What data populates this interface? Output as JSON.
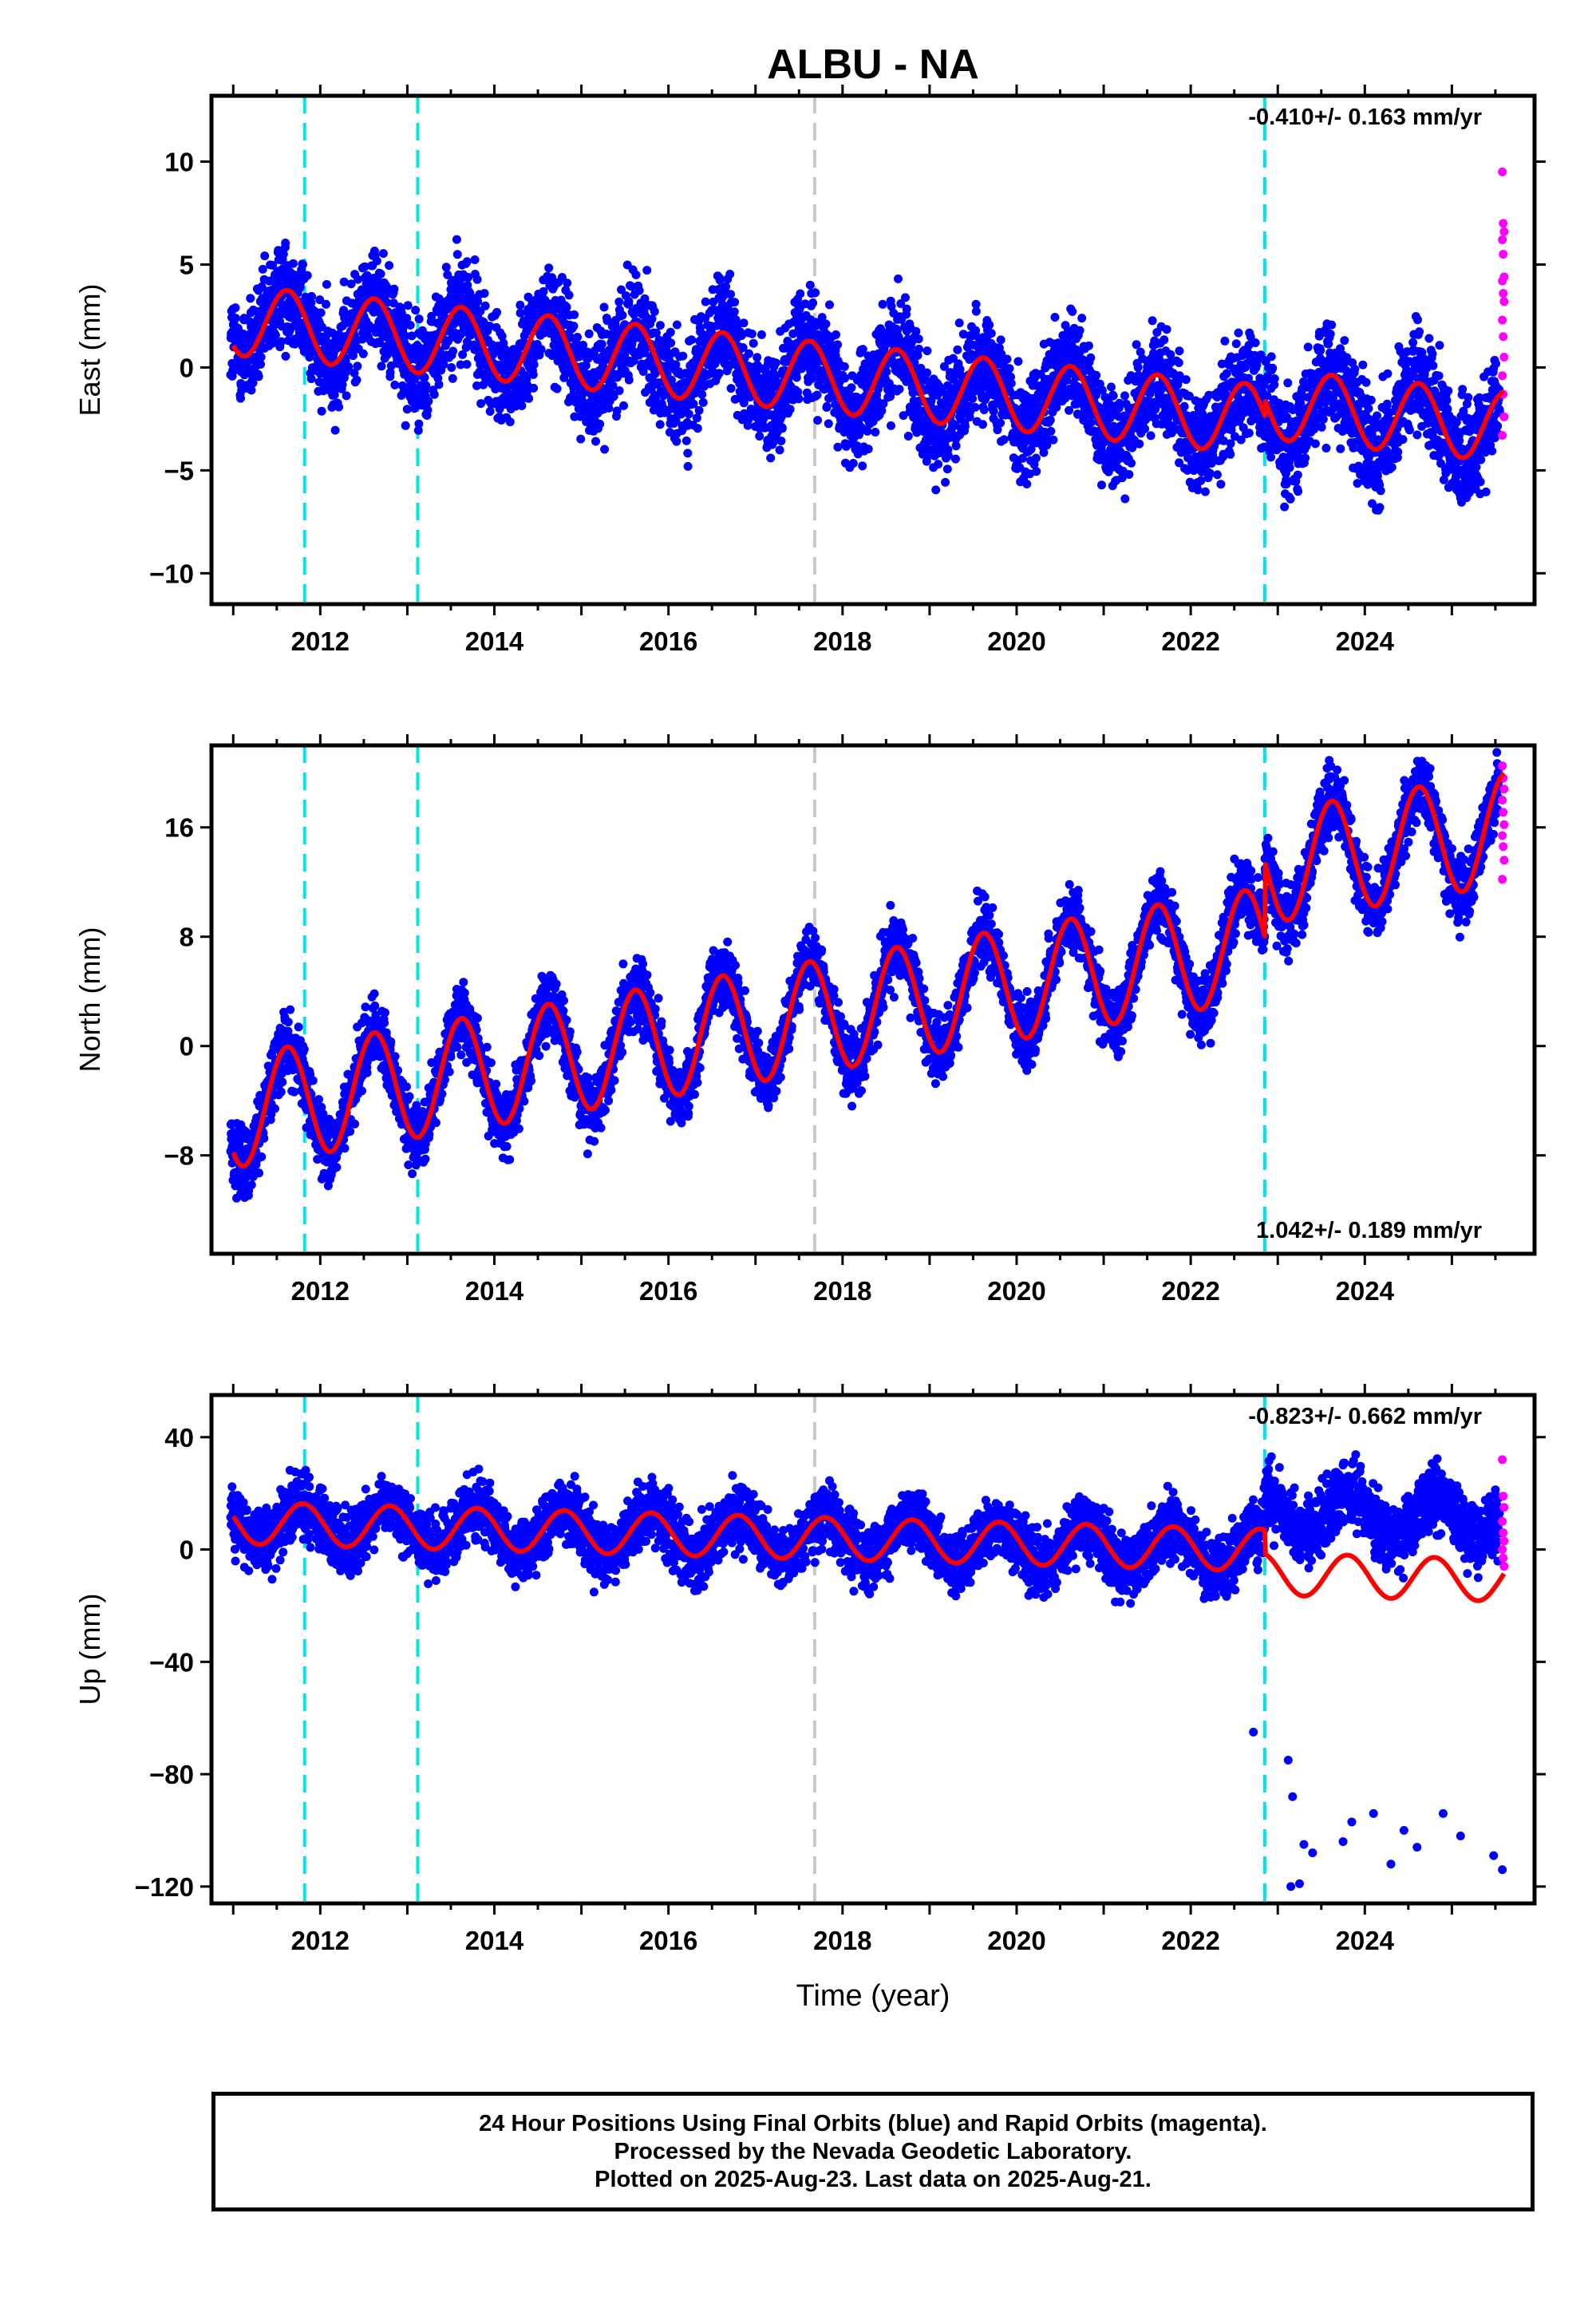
{
  "title": "ALBU - NA",
  "xlabel": "Time (year)",
  "caption": {
    "line1": "24 Hour Positions Using Final Orbits (blue) and Rapid Orbits (magenta).",
    "line2": "Processed by the Nevada Geodetic Laboratory.",
    "line3": "Plotted on 2025-Aug-23. Last data on 2025-Aug-21."
  },
  "colors": {
    "final": "#0000ff",
    "rapid": "#ff00ff",
    "model": "#ff0000",
    "equipment": "#00e5e5",
    "earthquake": "#c8c8c8"
  },
  "chart_data": [
    {
      "type": "scatter",
      "name": "East",
      "ylabel": "East (mm)",
      "xlim": [
        2010.75,
        2025.95
      ],
      "ylim": [
        -11.5,
        13.2
      ],
      "yticks": [
        10,
        5,
        0,
        -5,
        -10
      ],
      "ytick_labels": [
        "10",
        "5",
        "0",
        "−5",
        "−10"
      ],
      "xticks": [
        2012,
        2014,
        2016,
        2018,
        2020,
        2022,
        2024
      ],
      "rate": "-0.410+/- 0.163 mm/yr",
      "rate_position": "top-right",
      "trend": {
        "t0": 2011.0,
        "y0": 2.3,
        "rate": -0.41,
        "annual_amp": 1.7,
        "phase_peak": 0.62,
        "step": {
          "at": 2022.85,
          "size": 0.8
        }
      },
      "scatter_sd": 1.25,
      "rapid_values": [
        9.5,
        7.0,
        6.6,
        6.2,
        5.5,
        4.4,
        4.2,
        3.6,
        3.2,
        2.3,
        1.5,
        0.5,
        -0.4,
        -1.3,
        -2.4,
        -3.3
      ]
    },
    {
      "type": "scatter",
      "name": "North",
      "ylabel": "North (mm)",
      "xlim": [
        2010.75,
        2025.95
      ],
      "ylim": [
        -15.2,
        22.0
      ],
      "yticks": [
        16,
        8,
        0,
        -8
      ],
      "ytick_labels": [
        "16",
        "8",
        "0",
        "−8"
      ],
      "xticks": [
        2012,
        2014,
        2016,
        2018,
        2020,
        2022,
        2024
      ],
      "rate": "1.042+/- 0.189 mm/yr",
      "rate_position": "bottom-right",
      "trend": {
        "t0": 2011.0,
        "y0": -4.8,
        "rate": 1.04,
        "annual_amp": 4.1,
        "phase_peak": 0.62,
        "step": {
          "at": 2022.85,
          "size": 5.5
        }
      },
      "scatter_sd": 1.2,
      "rapid_values": [
        20.5,
        19.6,
        18.8,
        18.0,
        17.1,
        16.2,
        15.4,
        14.6,
        13.6,
        12.2
      ]
    },
    {
      "type": "scatter",
      "name": "Up",
      "ylabel": "Up (mm)",
      "xlim": [
        2010.75,
        2025.95
      ],
      "ylim": [
        -126,
        55
      ],
      "yticks": [
        40,
        0,
        -40,
        -80,
        -120
      ],
      "ytick_labels": [
        "40",
        "0",
        "−40",
        "−80",
        "−120"
      ],
      "xticks": [
        2012,
        2014,
        2016,
        2018,
        2020,
        2022,
        2024
      ],
      "rate": "-0.823+/- 0.662 mm/yr",
      "rate_position": "top-right",
      "trend": {
        "t0": 2011.0,
        "y0": 9.5,
        "rate": -0.82,
        "annual_amp": 7.5,
        "phase_peak": 0.8,
        "step": {
          "at": 2022.85,
          "size": -8.5
        }
      },
      "scatter_sd": 5.5,
      "rapid_values": [
        32,
        19,
        15,
        10,
        6,
        3,
        0,
        -3,
        -6
      ],
      "outliers": [
        [
          2022.72,
          -65
        ],
        [
          2023.12,
          -75
        ],
        [
          2023.17,
          -88
        ],
        [
          2023.15,
          -120
        ],
        [
          2023.3,
          -105
        ],
        [
          2023.4,
          -108
        ],
        [
          2023.75,
          -104
        ],
        [
          2023.85,
          -97
        ],
        [
          2024.1,
          -94
        ],
        [
          2024.3,
          -112
        ],
        [
          2024.45,
          -100
        ],
        [
          2024.6,
          -106
        ],
        [
          2024.9,
          -94
        ],
        [
          2025.1,
          -102
        ],
        [
          2025.48,
          -109
        ],
        [
          2025.58,
          -114
        ],
        [
          2023.25,
          -119
        ]
      ]
    }
  ],
  "breaks": {
    "equipment": [
      2011.82,
      2013.12,
      2022.85
    ],
    "earthquake": [
      2017.68
    ]
  }
}
